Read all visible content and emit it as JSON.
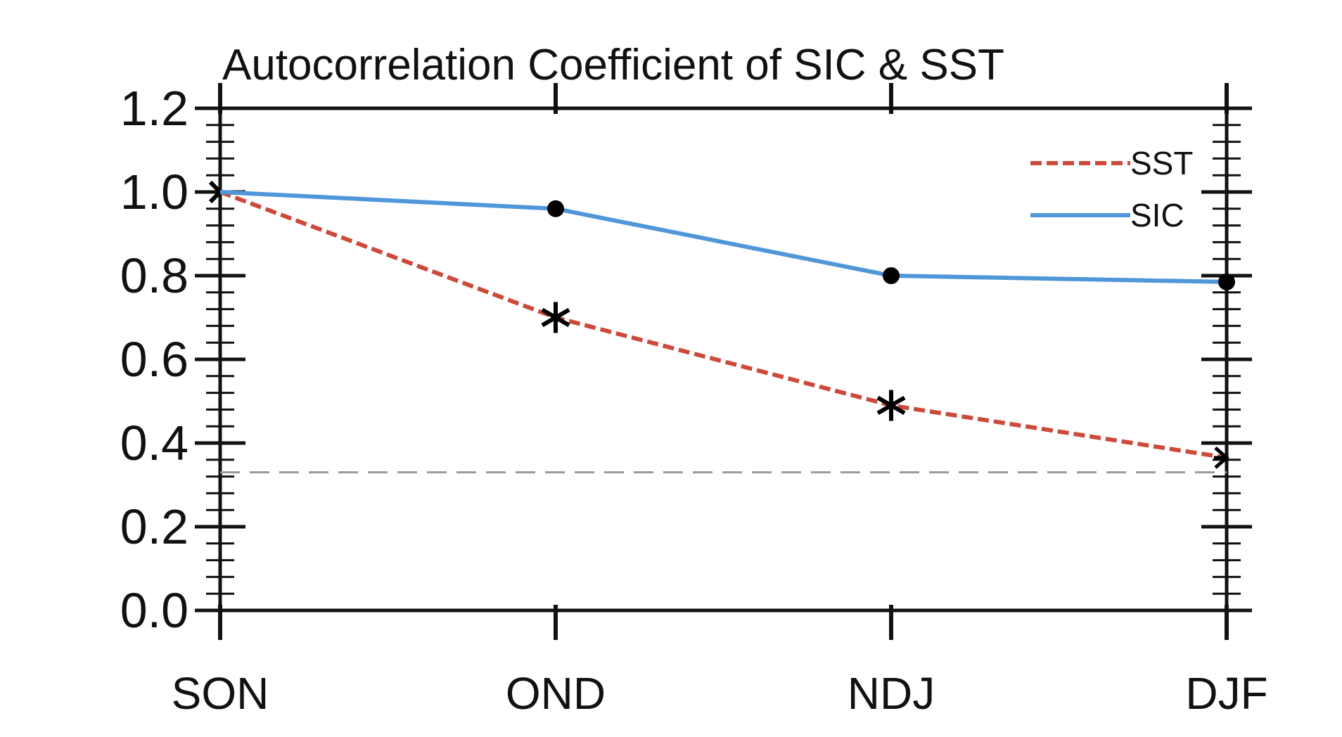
{
  "chart_data": {
    "type": "line",
    "title": "Autocorrelation Coefficient of SIC & SST",
    "xlabel": "",
    "ylabel": "",
    "categories": [
      "SON",
      "OND",
      "NDJ",
      "DJF"
    ],
    "ylim": [
      0.0,
      1.2
    ],
    "yticks": [
      "0.0",
      "0.2",
      "0.4",
      "0.6",
      "0.8",
      "1.0",
      "1.2"
    ],
    "grid": false,
    "legend_position": "top-right",
    "series": [
      {
        "name": "SST",
        "values": [
          1.0,
          0.7,
          0.49,
          0.365
        ],
        "color": "#cc4a3c",
        "line_style": "dashed",
        "marker": "asterisk"
      },
      {
        "name": "SIC",
        "values": [
          1.0,
          0.96,
          0.8,
          0.785
        ],
        "color": "#4f97d9",
        "line_style": "solid",
        "marker": "dot"
      }
    ],
    "significance_line": {
      "value": 0.33,
      "color": "#9a9a9a",
      "line_style": "dashed"
    },
    "sst_significant_points": [
      1,
      2,
      3
    ]
  }
}
